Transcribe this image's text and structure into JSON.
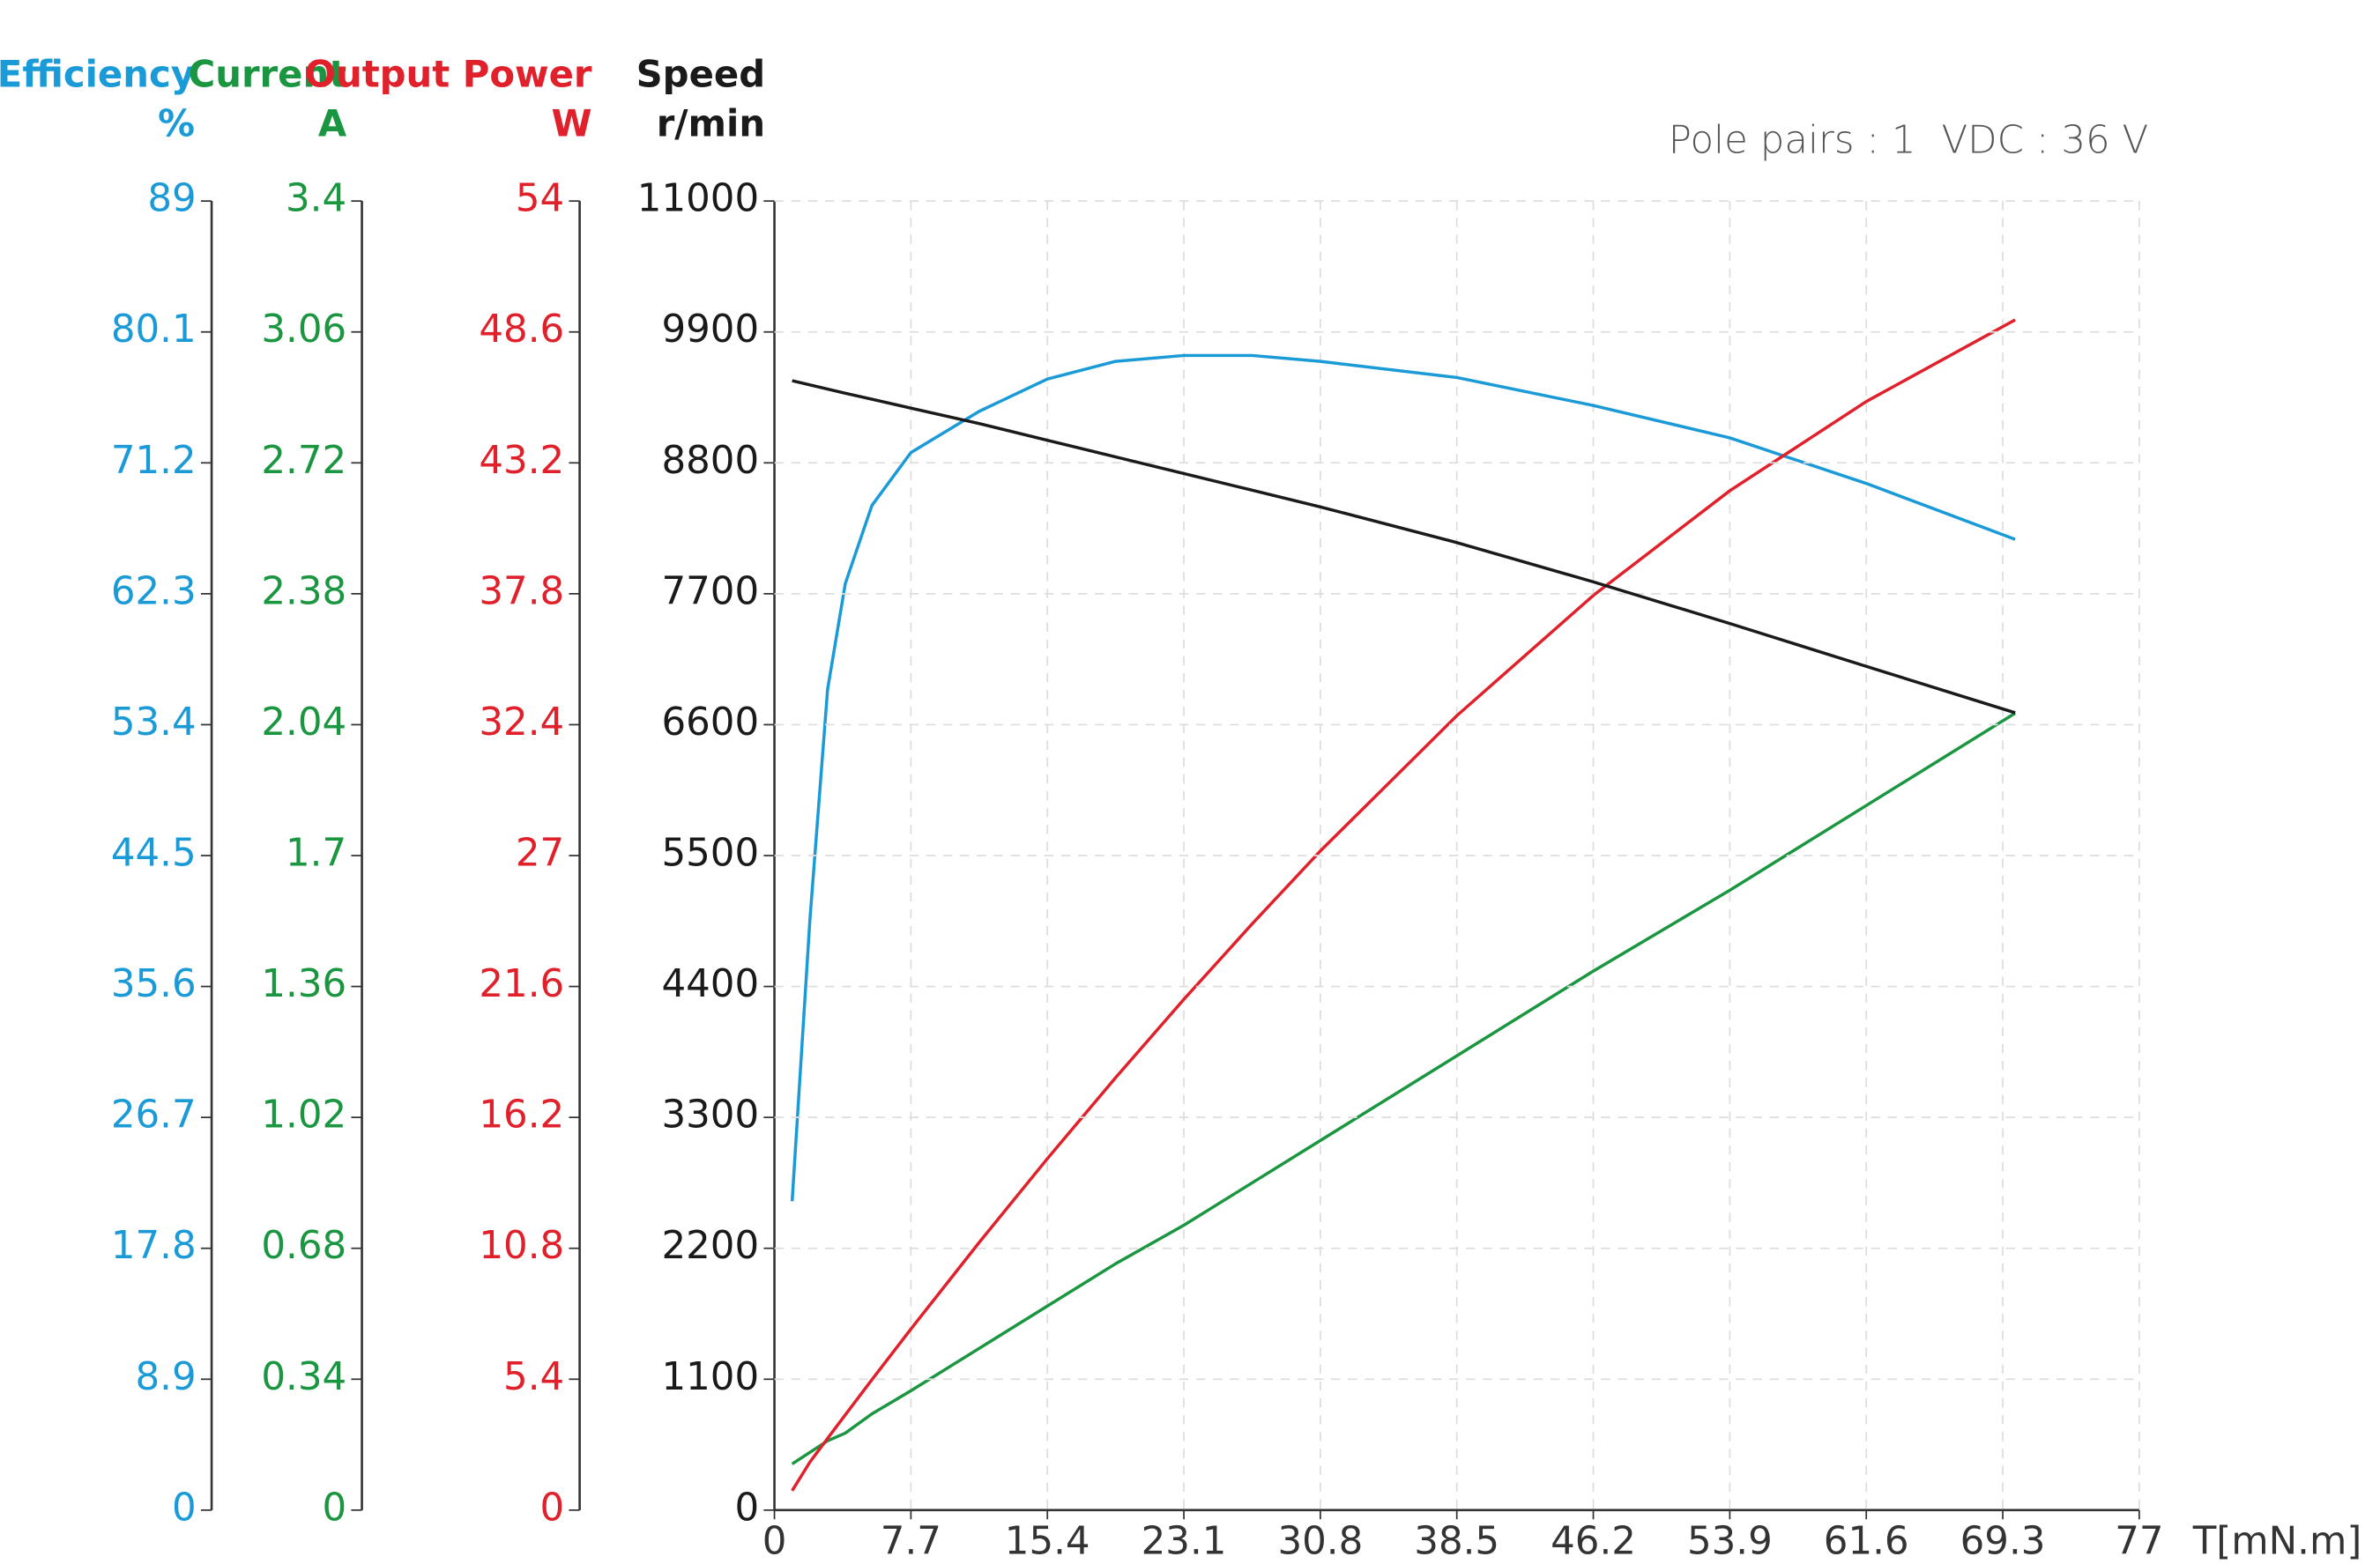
{
  "chart_data": {
    "type": "line",
    "x_label": "T[mN.m]",
    "annotations": [
      "Pole pairs : 1",
      "VDC : 36 V"
    ],
    "xlim": [
      0,
      77
    ],
    "xticks": [
      0,
      7.7,
      15.4,
      23.1,
      30.8,
      38.5,
      46.2,
      53.9,
      61.6,
      69.3,
      77
    ],
    "grid": true,
    "x": [
      1,
      2,
      3,
      4,
      5.5,
      7.7,
      11.55,
      15.4,
      19.25,
      23.1,
      26.95,
      30.8,
      38.5,
      46.2,
      53.9,
      61.6,
      70
    ],
    "series": [
      {
        "name": "Efficiency",
        "unit": "%",
        "color": "#1a9ad6",
        "ylim": [
          0,
          89
        ],
        "yticks": [
          0,
          8.9,
          17.8,
          26.7,
          35.6,
          44.5,
          53.4,
          62.3,
          71.2,
          80.1,
          89
        ],
        "values": [
          21.0,
          40.1,
          55.8,
          63.0,
          68.3,
          71.9,
          74.7,
          76.9,
          78.1,
          78.5,
          78.5,
          78.1,
          77.0,
          75.1,
          72.9,
          69.8,
          66.0
        ]
      },
      {
        "name": "Current",
        "unit": "A",
        "color": "#1a9641",
        "ylim": [
          0,
          3.4
        ],
        "yticks": [
          0,
          0.34,
          0.68,
          1.02,
          1.36,
          1.7,
          2.04,
          2.38,
          2.72,
          3.06,
          3.4
        ],
        "values": [
          0.12,
          0.15,
          0.18,
          0.2,
          0.25,
          0.31,
          0.42,
          0.53,
          0.64,
          0.74,
          0.85,
          0.96,
          1.18,
          1.4,
          1.61,
          1.83,
          2.07
        ]
      },
      {
        "name": "Output Power",
        "unit": "W",
        "color": "#e0202a",
        "ylim": [
          0,
          54
        ],
        "yticks": [
          0,
          5.4,
          10.8,
          16.2,
          21.6,
          27,
          32.4,
          37.8,
          43.2,
          48.6,
          54
        ],
        "values": [
          0.8,
          1.98,
          2.96,
          3.93,
          5.38,
          7.47,
          11.04,
          14.5,
          17.84,
          21.07,
          24.18,
          27.19,
          32.77,
          37.73,
          42.05,
          45.73,
          49.1
        ]
      },
      {
        "name": "Speed",
        "unit": "r/min",
        "color": "#1a1a1a",
        "ylim": [
          0,
          11000
        ],
        "yticks": [
          0,
          1100,
          2200,
          3300,
          4400,
          5500,
          6600,
          7700,
          8800,
          9900,
          11000
        ],
        "values": [
          9490,
          9455,
          9420,
          9385,
          9335,
          9260,
          9130,
          8990,
          8850,
          8710,
          8570,
          8430,
          8130,
          7800,
          7450,
          7090,
          6700
        ]
      }
    ]
  }
}
